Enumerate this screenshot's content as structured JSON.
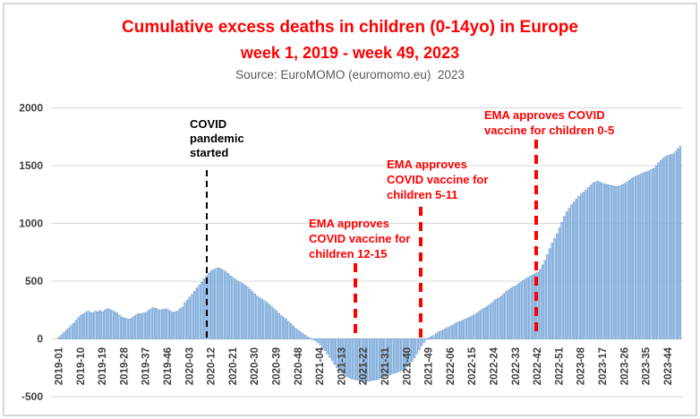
{
  "header": {
    "title_line1": "Cumulative excess deaths in children (0-14yo) in Europe",
    "title_line2": "week 1, 2019 - week 49, 2023",
    "source": "Source: EuroMOMO (euromomo.eu)  2023"
  },
  "colors": {
    "title_red": "#FF0000",
    "annotation_red": "#FF0000",
    "annotation_black": "#000000",
    "source_gray": "#595959",
    "axis_label": "#404040",
    "gridline": "#D9D9D9",
    "bar_fill": "#B9D1EC",
    "bar_border": "#5B94CF",
    "frame_border": "#D8D8D8"
  },
  "annotations": {
    "pandemic": {
      "lines": [
        "COVID",
        "pandemic",
        "started"
      ],
      "line_color": "#000000",
      "marks_week": "2020-11"
    },
    "ema_12_15": {
      "lines": [
        "EMA approves",
        "COVID vaccine for",
        "children 12-15"
      ],
      "line_color": "#FF0000",
      "marks_week": "2021-21"
    },
    "ema_5_11": {
      "lines": [
        "EMA approves",
        "COVID vaccine for",
        "children 5-11"
      ],
      "line_color": "#FF0000",
      "marks_week": "2021-47"
    },
    "ema_0_5": {
      "lines": [
        "EMA approves COVID",
        "vaccine for children 0-5"
      ],
      "line_color": "#FF0000",
      "marks_week": "2022-42"
    }
  },
  "chart_data": {
    "type": "bar",
    "title": "Cumulative excess deaths in children (0-14yo) in Europe",
    "subtitle": "week 1, 2019 - week 49, 2023",
    "source": "Source: EuroMOMO (euromomo.eu)  2023",
    "series_name": "Cumulative excess deaths, children 0-14yo, Europe",
    "x_unit": "ISO week (YYYY-WW)",
    "x_first_week": "2019-01",
    "x_last_week": "2023-49",
    "weeks_per_year": {
      "2019": 52,
      "2020": 53,
      "2021": 52,
      "2022": 52,
      "2023": 49
    },
    "x_tick_every": 9,
    "x_tick_labels": [
      "2019-01",
      "2019-10",
      "2019-19",
      "2019-28",
      "2019-37",
      "2019-46",
      "2020-03",
      "2020-12",
      "2020-21",
      "2020-30",
      "2020-39",
      "2020-48",
      "2021-04",
      "2021-13",
      "2021-22",
      "2021-31",
      "2021-40",
      "2021-49",
      "2022-06",
      "2022-15",
      "2022-24",
      "2022-33",
      "2022-42",
      "2022-51",
      "2023-08",
      "2023-17",
      "2023-26",
      "2023-35",
      "2023-44"
    ],
    "y_ticks": [
      2000,
      1500,
      1000,
      500,
      0,
      -500
    ],
    "ylim": [
      -500,
      2000
    ],
    "grid": "horizontal",
    "values": [
      15,
      35,
      55,
      75,
      95,
      115,
      135,
      160,
      185,
      205,
      215,
      230,
      240,
      230,
      225,
      240,
      235,
      245,
      235,
      250,
      260,
      255,
      245,
      235,
      225,
      205,
      190,
      180,
      175,
      170,
      180,
      195,
      210,
      220,
      215,
      225,
      230,
      245,
      260,
      270,
      265,
      255,
      250,
      255,
      260,
      255,
      240,
      230,
      235,
      240,
      260,
      275,
      310,
      335,
      360,
      385,
      410,
      440,
      465,
      490,
      520,
      545,
      570,
      590,
      600,
      610,
      615,
      605,
      595,
      580,
      565,
      545,
      530,
      515,
      500,
      490,
      480,
      465,
      450,
      430,
      410,
      390,
      370,
      355,
      345,
      330,
      315,
      300,
      280,
      260,
      240,
      220,
      200,
      185,
      170,
      150,
      130,
      110,
      90,
      75,
      60,
      45,
      30,
      15,
      5,
      -5,
      -15,
      -30,
      -50,
      -75,
      -100,
      -130,
      -160,
      -190,
      -220,
      -250,
      -275,
      -295,
      -310,
      -325,
      -335,
      -345,
      -350,
      -355,
      -360,
      -365,
      -370,
      -368,
      -365,
      -362,
      -358,
      -355,
      -350,
      -340,
      -330,
      -325,
      -320,
      -310,
      -300,
      -295,
      -290,
      -280,
      -270,
      -255,
      -240,
      -220,
      -195,
      -165,
      -130,
      -95,
      -60,
      -30,
      -5,
      10,
      20,
      30,
      45,
      60,
      70,
      80,
      90,
      100,
      110,
      120,
      135,
      145,
      150,
      160,
      170,
      180,
      190,
      200,
      210,
      225,
      240,
      255,
      265,
      280,
      295,
      310,
      330,
      345,
      355,
      370,
      390,
      410,
      425,
      440,
      450,
      460,
      475,
      490,
      505,
      520,
      530,
      545,
      555,
      565,
      575,
      600,
      640,
      680,
      730,
      780,
      830,
      870,
      910,
      960,
      1010,
      1060,
      1100,
      1130,
      1160,
      1185,
      1210,
      1235,
      1255,
      1270,
      1290,
      1310,
      1330,
      1350,
      1360,
      1365,
      1355,
      1345,
      1340,
      1335,
      1330,
      1325,
      1320,
      1320,
      1325,
      1335,
      1345,
      1360,
      1375,
      1390,
      1400,
      1410,
      1420,
      1430,
      1440,
      1445,
      1455,
      1465,
      1475,
      1500,
      1525,
      1545,
      1565,
      1580,
      1590,
      1595,
      1600,
      1620,
      1645,
      1665
    ]
  }
}
